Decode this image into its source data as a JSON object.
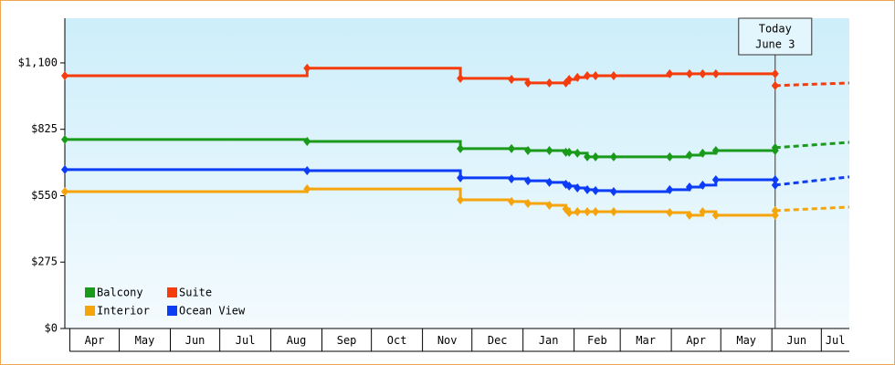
{
  "chart_data": {
    "type": "line",
    "step": true,
    "x": [
      -3,
      144,
      237,
      268,
      278,
      291,
      301,
      303,
      308,
      314,
      319,
      330,
      364,
      376,
      384,
      392,
      428
    ],
    "xlim": [
      -3,
      473
    ],
    "xticks": [
      {
        "value": 0,
        "label": "Apr"
      },
      {
        "value": 30,
        "label": "May"
      },
      {
        "value": 61,
        "label": "Jun"
      },
      {
        "value": 91,
        "label": "Jul"
      },
      {
        "value": 122,
        "label": "Aug"
      },
      {
        "value": 153,
        "label": "Sep"
      },
      {
        "value": 183,
        "label": "Oct"
      },
      {
        "value": 214,
        "label": "Nov"
      },
      {
        "value": 244,
        "label": "Dec"
      },
      {
        "value": 275,
        "label": "Jan"
      },
      {
        "value": 306,
        "label": "Feb"
      },
      {
        "value": 334,
        "label": "Mar"
      },
      {
        "value": 365,
        "label": "Apr"
      },
      {
        "value": 395,
        "label": "May"
      },
      {
        "value": 426,
        "label": "Jun"
      },
      {
        "value": 456,
        "label": "Jul"
      }
    ],
    "ylim": [
      0,
      1285
    ],
    "yticks": [
      {
        "value": 0,
        "label": "$0"
      },
      {
        "value": 275,
        "label": "$275"
      },
      {
        "value": 550,
        "label": "$550"
      },
      {
        "value": 825,
        "label": "$825"
      },
      {
        "value": 1100,
        "label": "$1,100"
      }
    ],
    "forecast_x": [
      428,
      473
    ],
    "series": [
      {
        "name": "Balcony",
        "color": "#1a9a1a",
        "values": [
          783,
          775,
          745,
          745,
          737,
          737,
          730,
          730,
          726,
          711,
          711,
          711,
          711,
          718,
          726,
          737,
          737
        ],
        "forecast": [
          749,
          771
        ]
      },
      {
        "name": "Suite",
        "color": "#f53c0c",
        "values": [
          1047,
          1078,
          1036,
          1032,
          1017,
          1017,
          1017,
          1032,
          1040,
          1047,
          1047,
          1047,
          1055,
          1055,
          1055,
          1055,
          1055
        ],
        "forecast": [
          1006,
          1017
        ]
      },
      {
        "name": "Interior",
        "color": "#f5a40c",
        "values": [
          567,
          578,
          533,
          526,
          518,
          510,
          495,
          480,
          484,
          484,
          484,
          484,
          480,
          469,
          484,
          469,
          469
        ],
        "forecast": [
          488,
          503
        ]
      },
      {
        "name": "Ocean View",
        "color": "#0c3cf5",
        "values": [
          658,
          654,
          624,
          620,
          612,
          605,
          597,
          590,
          582,
          575,
          571,
          567,
          575,
          586,
          594,
          616,
          616
        ],
        "forecast": [
          594,
          628
        ]
      }
    ],
    "annotation": {
      "x": 428,
      "lines": [
        "Today",
        "June 3"
      ]
    }
  }
}
